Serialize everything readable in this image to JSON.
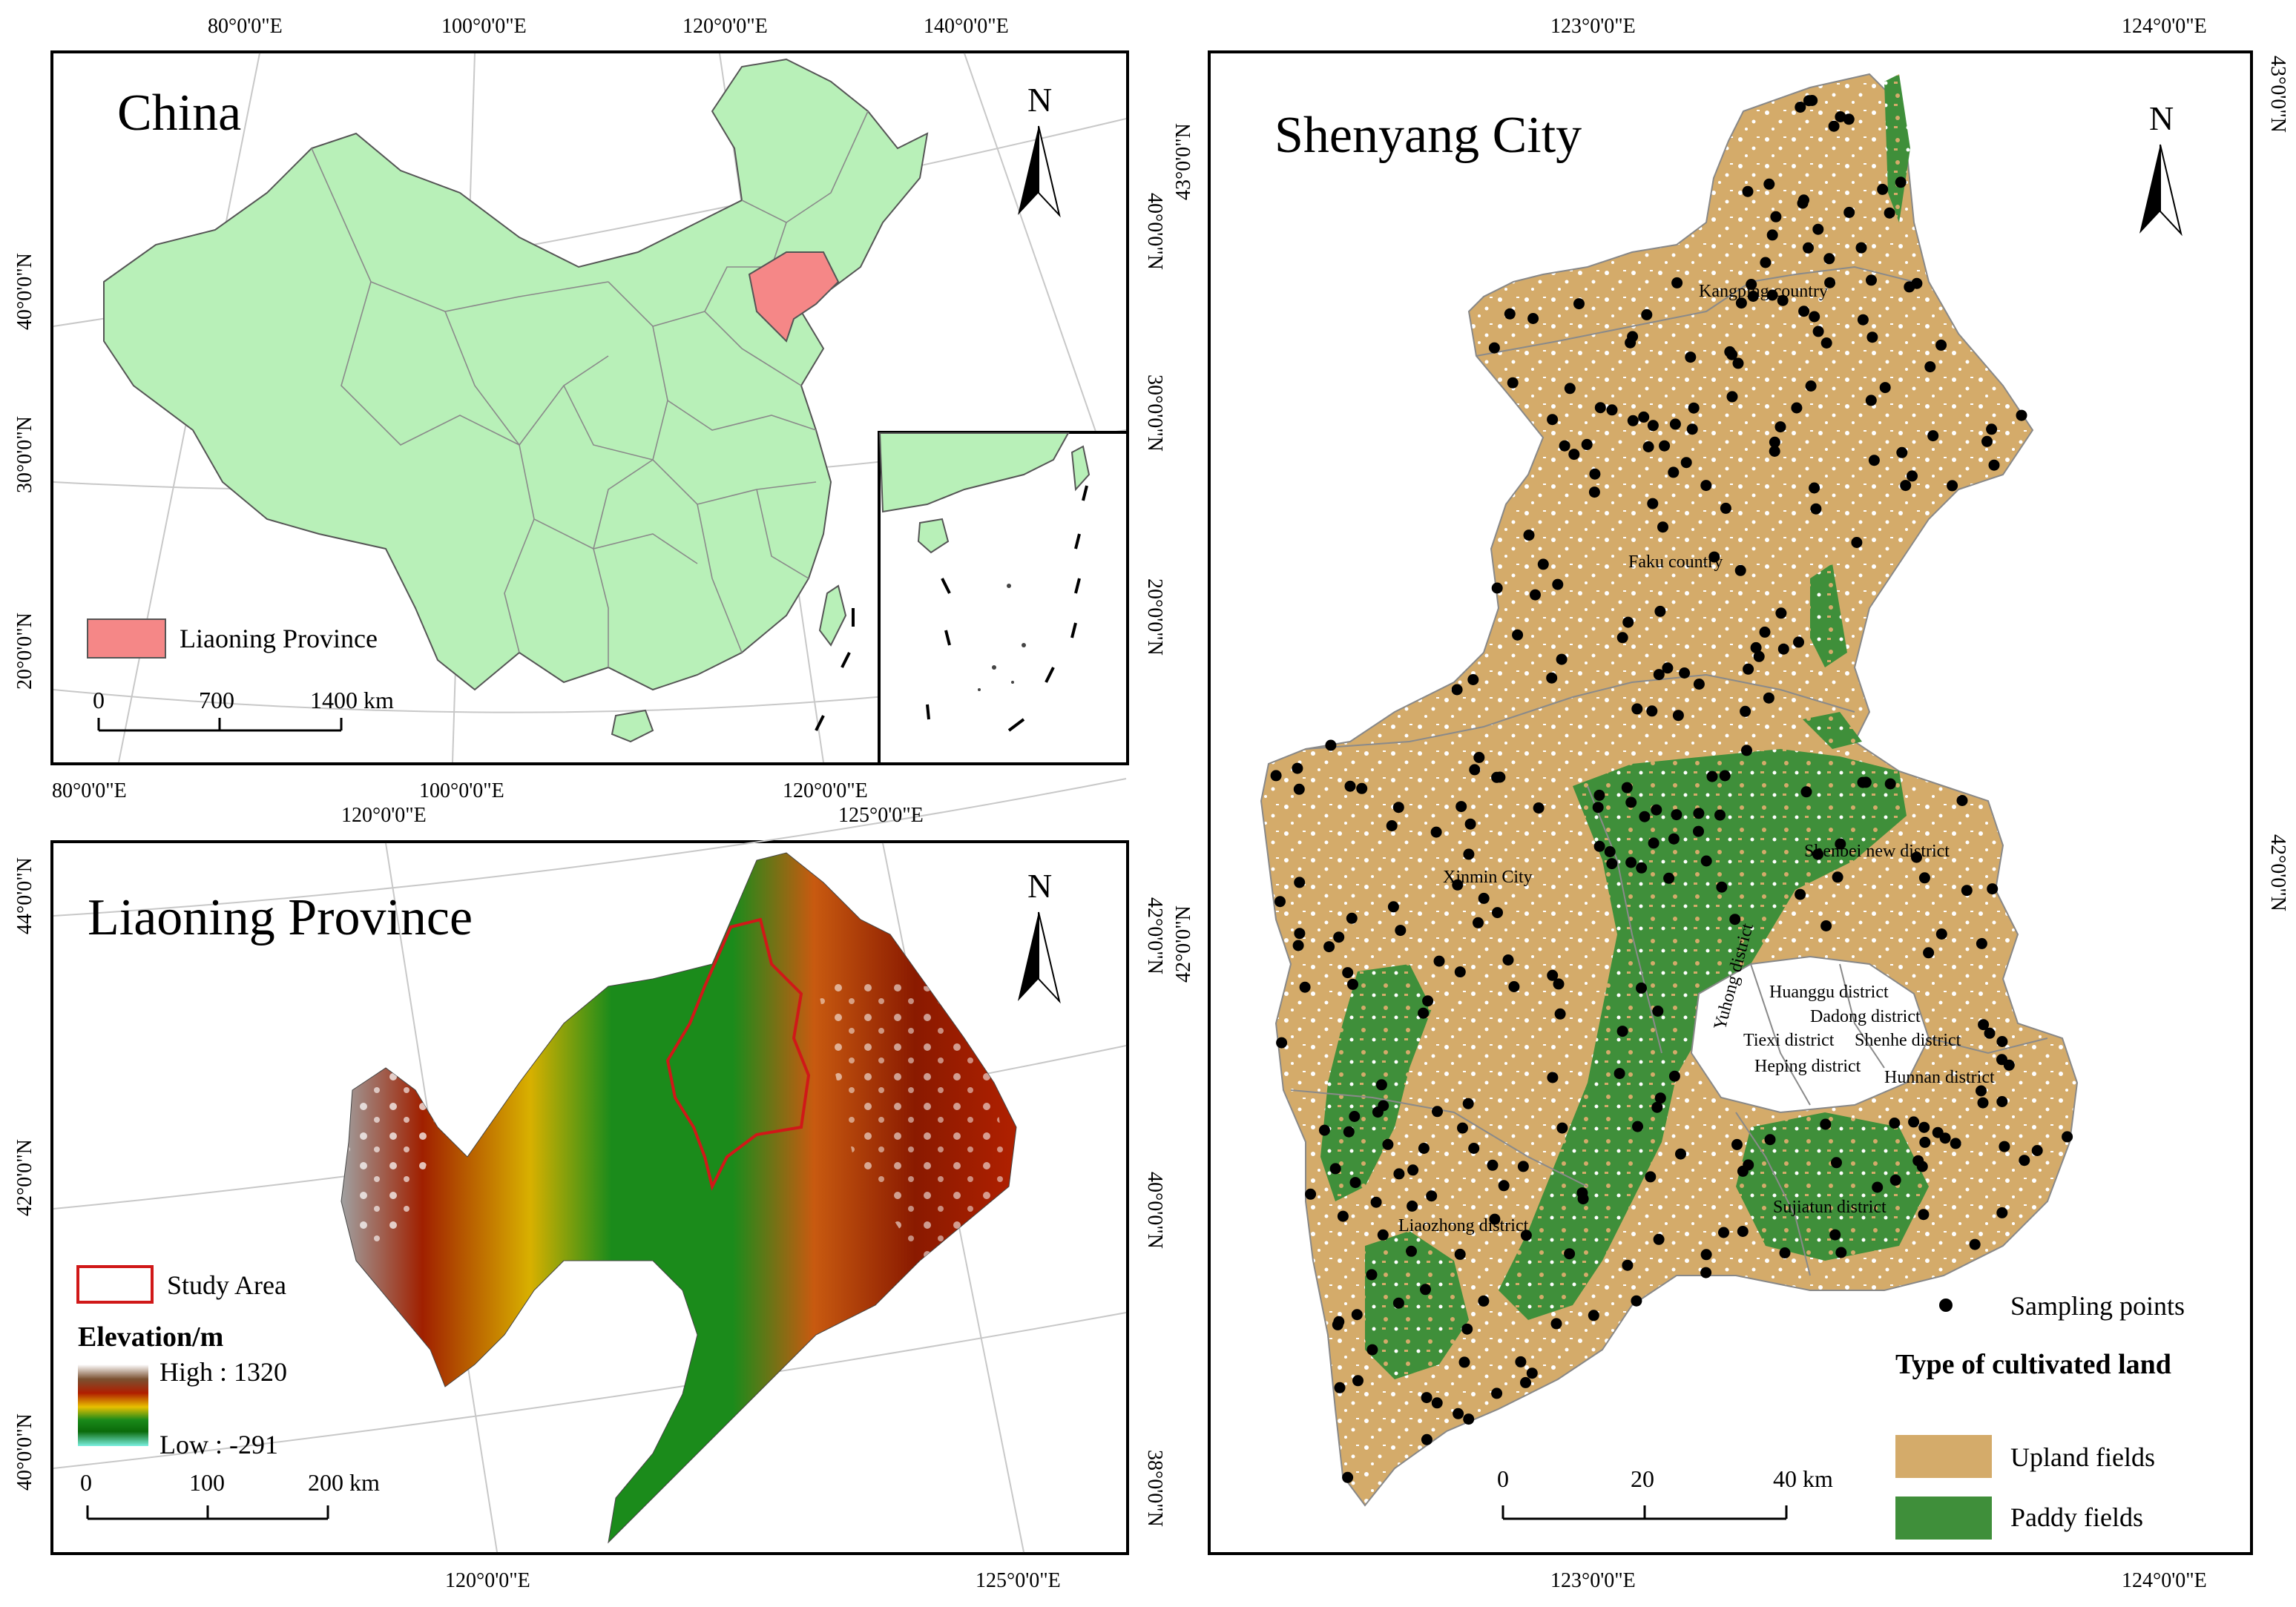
{
  "china_panel": {
    "title": "China",
    "top_ticks": [
      "80°0'0\"E",
      "100°0'0\"E",
      "120°0'0\"E",
      "140°0'0\"E"
    ],
    "bottom_ticks": [
      "80°0'0\"E",
      "100°0'0\"E",
      "120°0'0\"E"
    ],
    "left_ticks": [
      "40°0'0\"N",
      "30°0'0\"N",
      "20°0'0\"N"
    ],
    "right_ticks": [
      "40°0'0\"N",
      "30°0'0\"N",
      "20°0'0\"N"
    ],
    "legend_label": "Liaoning Province",
    "scale_labels": [
      "0",
      "700",
      "1400 km"
    ],
    "colors": {
      "land": "#b8f0b8",
      "highlight": "#f58787"
    }
  },
  "liaoning_panel": {
    "title": "Liaoning Province",
    "top_ticks": [
      "120°0'0\"E",
      "125°0'0\"E"
    ],
    "bottom_ticks": [
      "120°0'0\"E",
      "125°0'0\"E"
    ],
    "left_ticks": [
      "44°0'0\"N",
      "42°0'0\"N",
      "40°0'0\"N"
    ],
    "right_ticks": [
      "42°0'0\"N",
      "40°0'0\"N",
      "38°0'0\"N"
    ],
    "study_area_label": "Study Area",
    "elevation_title": "Elevation/m",
    "elevation_high": "High : 1320",
    "elevation_low": "Low : -291",
    "scale_labels": [
      "0",
      "100",
      "200 km"
    ]
  },
  "shenyang_panel": {
    "title": "Shenyang City",
    "top_ticks": [
      "123°0'0\"E",
      "124°0'0\"E"
    ],
    "bottom_ticks": [
      "123°0'0\"E",
      "124°0'0\"E"
    ],
    "left_ticks": [
      "43°0'0\"N",
      "42°0'0\"N"
    ],
    "right_ticks": [
      "43°0'0\"N",
      "42°0'0\"N"
    ],
    "district_labels": [
      "Kangping country",
      "Faku country",
      "Xinmin City",
      "Shenbei new district",
      "Yuhong district",
      "Huanggu district",
      "Dadong district",
      "Tiexi district",
      "Shenhe district",
      "Heping district",
      "Hunnan district",
      "Liaozhong district",
      "Sujiatun district"
    ],
    "sampling_points_label": "Sampling points",
    "legend_title": "Type of cultivated land",
    "upland_label": "Upland fields",
    "paddy_label": "Paddy fields",
    "scale_labels": [
      "0",
      "20",
      "40 km"
    ],
    "colors": {
      "upland": "#d4ab6a",
      "paddy": "#3f8f3a"
    }
  },
  "north_arrow_label": "N"
}
